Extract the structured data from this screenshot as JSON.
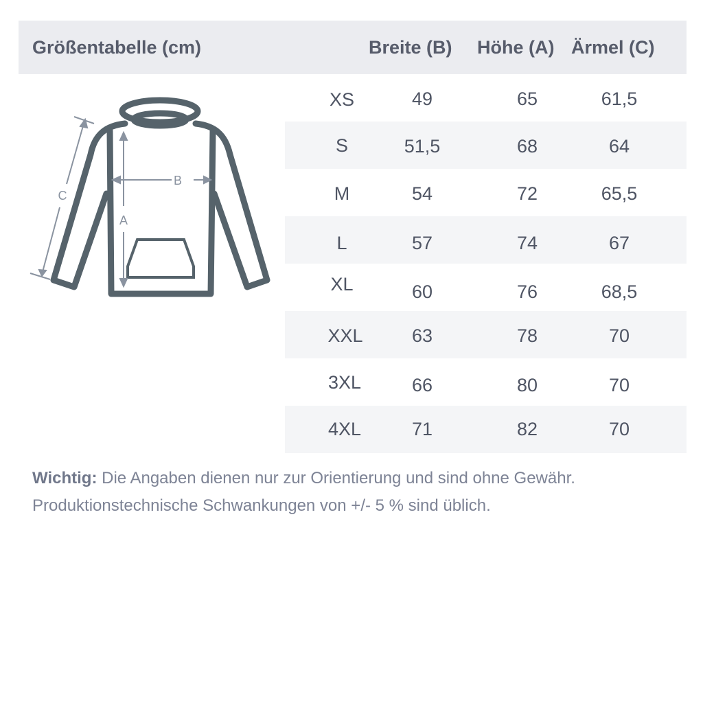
{
  "header": {
    "title": "Größentabelle (cm)",
    "col_b": "Breite (B)",
    "col_a": "Höhe (A)",
    "col_c": "Ärmel (C)"
  },
  "rows": [
    {
      "size": "XS",
      "b": "49",
      "a": "65",
      "c": "61,5"
    },
    {
      "size": "S",
      "b": "51,5",
      "a": "68",
      "c": "64"
    },
    {
      "size": "M",
      "b": "54",
      "a": "72",
      "c": "65,5"
    },
    {
      "size": "L",
      "b": "57",
      "a": "74",
      "c": "67"
    },
    {
      "size": "XL",
      "b": "60",
      "a": "76",
      "c": "68,5"
    },
    {
      "size": "XXL",
      "b": "63",
      "a": "78",
      "c": "70"
    },
    {
      "size": "3XL",
      "b": "66",
      "a": "80",
      "c": "70"
    },
    {
      "size": "4XL",
      "b": "71",
      "a": "82",
      "c": "70"
    }
  ],
  "diagram": {
    "label_a": "A",
    "label_b": "B",
    "label_c": "C"
  },
  "note": {
    "bold": "Wichtig:",
    "line1": " Die Angaben dienen nur zur Orientierung und sind ohne Gewähr.",
    "line2": "Produktionstechnische Schwankungen von +/- 5 % sind üblich."
  },
  "colors": {
    "header_bg": "#ebecf0",
    "stripe": "#f4f5f7",
    "garment": "#56636b",
    "measure": "#8a93a0"
  }
}
